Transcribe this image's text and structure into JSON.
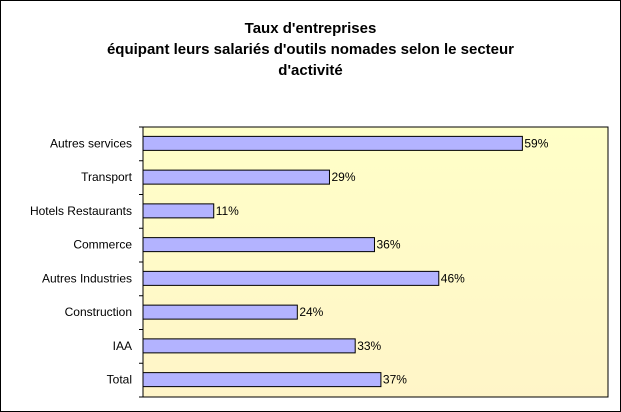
{
  "chart_data": {
    "type": "bar",
    "orientation": "horizontal",
    "title_lines": [
      "Taux d'entreprises",
      "équipant leurs salariés d'outils nomades selon le secteur",
      "d'activité"
    ],
    "categories": [
      "Autres services",
      "Transport",
      "Hotels Restaurants",
      "Commerce",
      "Autres Industries",
      "Construction",
      "IAA",
      "Total"
    ],
    "values": [
      59,
      29,
      11,
      36,
      46,
      24,
      33,
      37
    ],
    "value_labels": [
      "59%",
      "29%",
      "11%",
      "36%",
      "46%",
      "24%",
      "33%",
      "37%"
    ],
    "xlim": [
      0,
      100
    ],
    "grid": false,
    "legend": "none",
    "colors": {
      "bar_fill": "#b3b3ff",
      "bar_stroke": "#000000",
      "plot_bg_top": "#ffffc8",
      "plot_bg_bottom": "#fff5c8"
    }
  }
}
